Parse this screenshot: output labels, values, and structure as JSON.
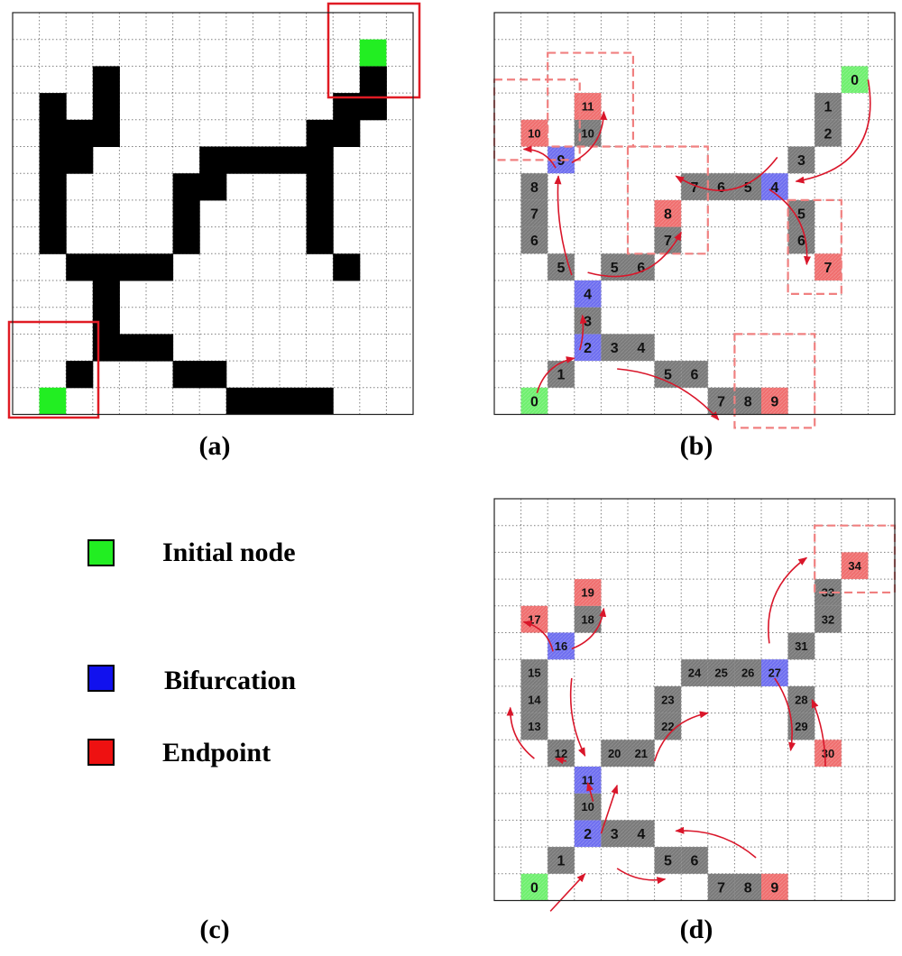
{
  "panels": {
    "a": {
      "caption": "(a)",
      "black_cells": [
        [
          3,
          2
        ],
        [
          3,
          3
        ],
        [
          3,
          4
        ],
        [
          1,
          3
        ],
        [
          1,
          4
        ],
        [
          2,
          4
        ],
        [
          2,
          5
        ],
        [
          1,
          5
        ],
        [
          1,
          6
        ],
        [
          1,
          7
        ],
        [
          1,
          8
        ],
        [
          2,
          9
        ],
        [
          3,
          9
        ],
        [
          4,
          9
        ],
        [
          5,
          9
        ],
        [
          3,
          10
        ],
        [
          3,
          11
        ],
        [
          3,
          12
        ],
        [
          4,
          12
        ],
        [
          5,
          12
        ],
        [
          2,
          13
        ],
        [
          6,
          13
        ],
        [
          7,
          13
        ],
        [
          8,
          14
        ],
        [
          9,
          14
        ],
        [
          10,
          14
        ],
        [
          11,
          14
        ],
        [
          6,
          6
        ],
        [
          6,
          7
        ],
        [
          6,
          8
        ],
        [
          7,
          6
        ],
        [
          7,
          5
        ],
        [
          8,
          5
        ],
        [
          9,
          5
        ],
        [
          10,
          5
        ],
        [
          11,
          5
        ],
        [
          11,
          4
        ],
        [
          12,
          4
        ],
        [
          12,
          3
        ],
        [
          13,
          3
        ],
        [
          13,
          2
        ],
        [
          11,
          6
        ],
        [
          11,
          7
        ],
        [
          11,
          8
        ],
        [
          12,
          9
        ]
      ],
      "green_cells": [
        [
          1,
          14
        ],
        [
          13,
          1
        ]
      ]
    },
    "b": {
      "caption": "(b)",
      "cells": [
        {
          "c": 1,
          "r": 14,
          "t": "green",
          "n": "0"
        },
        {
          "c": 2,
          "r": 13,
          "t": "gray",
          "n": "1"
        },
        {
          "c": 3,
          "r": 12,
          "t": "blue",
          "n": "2"
        },
        {
          "c": 3,
          "r": 11,
          "t": "gray",
          "n": "3"
        },
        {
          "c": 3,
          "r": 10,
          "t": "blue",
          "n": "4"
        },
        {
          "c": 4,
          "r": 12,
          "t": "gray",
          "n": "3"
        },
        {
          "c": 5,
          "r": 12,
          "t": "gray",
          "n": "4"
        },
        {
          "c": 6,
          "r": 13,
          "t": "gray",
          "n": "5"
        },
        {
          "c": 7,
          "r": 13,
          "t": "gray",
          "n": "6"
        },
        {
          "c": 8,
          "r": 14,
          "t": "gray",
          "n": "7"
        },
        {
          "c": 9,
          "r": 14,
          "t": "gray",
          "n": "8"
        },
        {
          "c": 10,
          "r": 14,
          "t": "red",
          "n": "9"
        },
        {
          "c": 2,
          "r": 9,
          "t": "gray",
          "n": "5"
        },
        {
          "c": 1,
          "r": 8,
          "t": "gray",
          "n": "6"
        },
        {
          "c": 1,
          "r": 7,
          "t": "gray",
          "n": "7"
        },
        {
          "c": 1,
          "r": 6,
          "t": "gray",
          "n": "8"
        },
        {
          "c": 2,
          "r": 5,
          "t": "blue",
          "n": "9"
        },
        {
          "c": 1,
          "r": 4,
          "t": "red",
          "n": "10"
        },
        {
          "c": 3,
          "r": 4,
          "t": "gray",
          "n": "10"
        },
        {
          "c": 3,
          "r": 3,
          "t": "red",
          "n": "11"
        },
        {
          "c": 4,
          "r": 9,
          "t": "gray",
          "n": "5"
        },
        {
          "c": 5,
          "r": 9,
          "t": "gray",
          "n": "6"
        },
        {
          "c": 6,
          "r": 8,
          "t": "gray",
          "n": "7"
        },
        {
          "c": 6,
          "r": 7,
          "t": "red",
          "n": "8"
        },
        {
          "c": 7,
          "r": 6,
          "t": "gray",
          "n": "7"
        },
        {
          "c": 8,
          "r": 6,
          "t": "gray",
          "n": "6"
        },
        {
          "c": 9,
          "r": 6,
          "t": "gray",
          "n": "5"
        },
        {
          "c": 10,
          "r": 6,
          "t": "blue",
          "n": "4"
        },
        {
          "c": 11,
          "r": 5,
          "t": "gray",
          "n": "3"
        },
        {
          "c": 12,
          "r": 4,
          "t": "gray",
          "n": "2"
        },
        {
          "c": 12,
          "r": 3,
          "t": "gray",
          "n": "1"
        },
        {
          "c": 13,
          "r": 2,
          "t": "green",
          "n": "0"
        },
        {
          "c": 11,
          "r": 7,
          "t": "gray",
          "n": "5"
        },
        {
          "c": 11,
          "r": 8,
          "t": "gray",
          "n": "6"
        },
        {
          "c": 12,
          "r": 9,
          "t": "red",
          "n": "7"
        }
      ],
      "dashed_boxes": [
        [
          0,
          2.5,
          3.2,
          5.5
        ],
        [
          2,
          1.5,
          5.2,
          5
        ],
        [
          5,
          5,
          8,
          9
        ],
        [
          11,
          7,
          13,
          10.5
        ],
        [
          9,
          12,
          12,
          15.5
        ]
      ],
      "arrows": [
        [
          1.6,
          14.2,
          3,
          12.9,
          -0.3
        ],
        [
          3.2,
          12.6,
          3.3,
          11.3,
          0.1
        ],
        [
          3.5,
          9.7,
          7,
          8.2,
          0.4
        ],
        [
          2.9,
          9.8,
          2.4,
          6.1,
          -0.1
        ],
        [
          2.3,
          5.8,
          1.1,
          5.1,
          0.3
        ],
        [
          2.9,
          5.6,
          4.1,
          3.7,
          0.3
        ],
        [
          4.6,
          13.3,
          8.4,
          15.2,
          -0.2
        ],
        [
          10.6,
          5.4,
          6.8,
          6.1,
          -0.45
        ],
        [
          14,
          2.5,
          11.3,
          6.3,
          -0.5
        ],
        [
          10.3,
          6.6,
          11.7,
          9.4,
          -0.3
        ]
      ]
    },
    "d": {
      "caption": "(d)",
      "cells": [
        {
          "c": 1,
          "r": 14,
          "t": "green",
          "n": "0"
        },
        {
          "c": 2,
          "r": 13,
          "t": "gray",
          "n": "1"
        },
        {
          "c": 3,
          "r": 12,
          "t": "blue",
          "n": "2"
        },
        {
          "c": 4,
          "r": 12,
          "t": "gray",
          "n": "3"
        },
        {
          "c": 5,
          "r": 12,
          "t": "gray",
          "n": "4"
        },
        {
          "c": 6,
          "r": 13,
          "t": "gray",
          "n": "5"
        },
        {
          "c": 7,
          "r": 13,
          "t": "gray",
          "n": "6"
        },
        {
          "c": 8,
          "r": 14,
          "t": "gray",
          "n": "7"
        },
        {
          "c": 9,
          "r": 14,
          "t": "gray",
          "n": "8"
        },
        {
          "c": 10,
          "r": 14,
          "t": "red",
          "n": "9"
        },
        {
          "c": 3,
          "r": 11,
          "t": "gray",
          "n": "10"
        },
        {
          "c": 3,
          "r": 10,
          "t": "blue",
          "n": "11"
        },
        {
          "c": 2,
          "r": 9,
          "t": "gray",
          "n": "12"
        },
        {
          "c": 1,
          "r": 8,
          "t": "gray",
          "n": "13"
        },
        {
          "c": 1,
          "r": 7,
          "t": "gray",
          "n": "14"
        },
        {
          "c": 1,
          "r": 6,
          "t": "gray",
          "n": "15"
        },
        {
          "c": 2,
          "r": 5,
          "t": "blue",
          "n": "16"
        },
        {
          "c": 1,
          "r": 4,
          "t": "red",
          "n": "17"
        },
        {
          "c": 3,
          "r": 4,
          "t": "gray",
          "n": "18"
        },
        {
          "c": 3,
          "r": 3,
          "t": "red",
          "n": "19"
        },
        {
          "c": 4,
          "r": 9,
          "t": "gray",
          "n": "20"
        },
        {
          "c": 5,
          "r": 9,
          "t": "gray",
          "n": "21"
        },
        {
          "c": 6,
          "r": 8,
          "t": "gray",
          "n": "22"
        },
        {
          "c": 6,
          "r": 7,
          "t": "gray",
          "n": "23"
        },
        {
          "c": 7,
          "r": 6,
          "t": "gray",
          "n": "24"
        },
        {
          "c": 8,
          "r": 6,
          "t": "gray",
          "n": "25"
        },
        {
          "c": 9,
          "r": 6,
          "t": "gray",
          "n": "26"
        },
        {
          "c": 10,
          "r": 6,
          "t": "blue",
          "n": "27"
        },
        {
          "c": 11,
          "r": 7,
          "t": "gray",
          "n": "28"
        },
        {
          "c": 11,
          "r": 8,
          "t": "gray",
          "n": "29"
        },
        {
          "c": 12,
          "r": 9,
          "t": "red",
          "n": "30"
        },
        {
          "c": 11,
          "r": 5,
          "t": "gray",
          "n": "31"
        },
        {
          "c": 12,
          "r": 4,
          "t": "gray",
          "n": "32"
        },
        {
          "c": 12,
          "r": 3,
          "t": "gray",
          "n": "33"
        },
        {
          "c": 13,
          "r": 2,
          "t": "red",
          "n": "34"
        }
      ],
      "dashed_boxes": [
        [
          12,
          1,
          15,
          3.5
        ]
      ],
      "arrows": [
        [
          2.1,
          15.4,
          3.4,
          14
        ],
        [
          1.5,
          9.7,
          0.6,
          7.8,
          -0.25
        ],
        [
          2.7,
          9.8,
          2.3,
          9.7,
          0
        ],
        [
          2.9,
          6.7,
          3.4,
          9.6,
          0.15
        ],
        [
          2.2,
          5.7,
          1.1,
          4.6,
          0.3
        ],
        [
          2.9,
          5.6,
          4.1,
          4.1,
          0.3
        ],
        [
          3.7,
          11.3,
          3.5,
          10.6,
          0
        ],
        [
          6,
          9.8,
          8,
          8,
          -0.3
        ],
        [
          4,
          12.5,
          4.6,
          10.7,
          0
        ],
        [
          9.8,
          13.4,
          6.8,
          12.4,
          0.2
        ],
        [
          4.6,
          13.8,
          6.4,
          14.2,
          0.2
        ],
        [
          10.5,
          6.7,
          11.1,
          9.4,
          -0.2
        ],
        [
          12.4,
          10,
          11.9,
          7.5,
          0.1
        ],
        [
          10.3,
          5.4,
          11.7,
          2.2,
          -0.3
        ]
      ]
    },
    "c": {
      "caption": "(c)",
      "legend": [
        {
          "label": "Initial node",
          "color": "#22ee22"
        },
        {
          "label": "Bifurcation",
          "color": "#1111ee"
        },
        {
          "label": "Endpoint",
          "color": "#ee1111"
        }
      ]
    }
  }
}
